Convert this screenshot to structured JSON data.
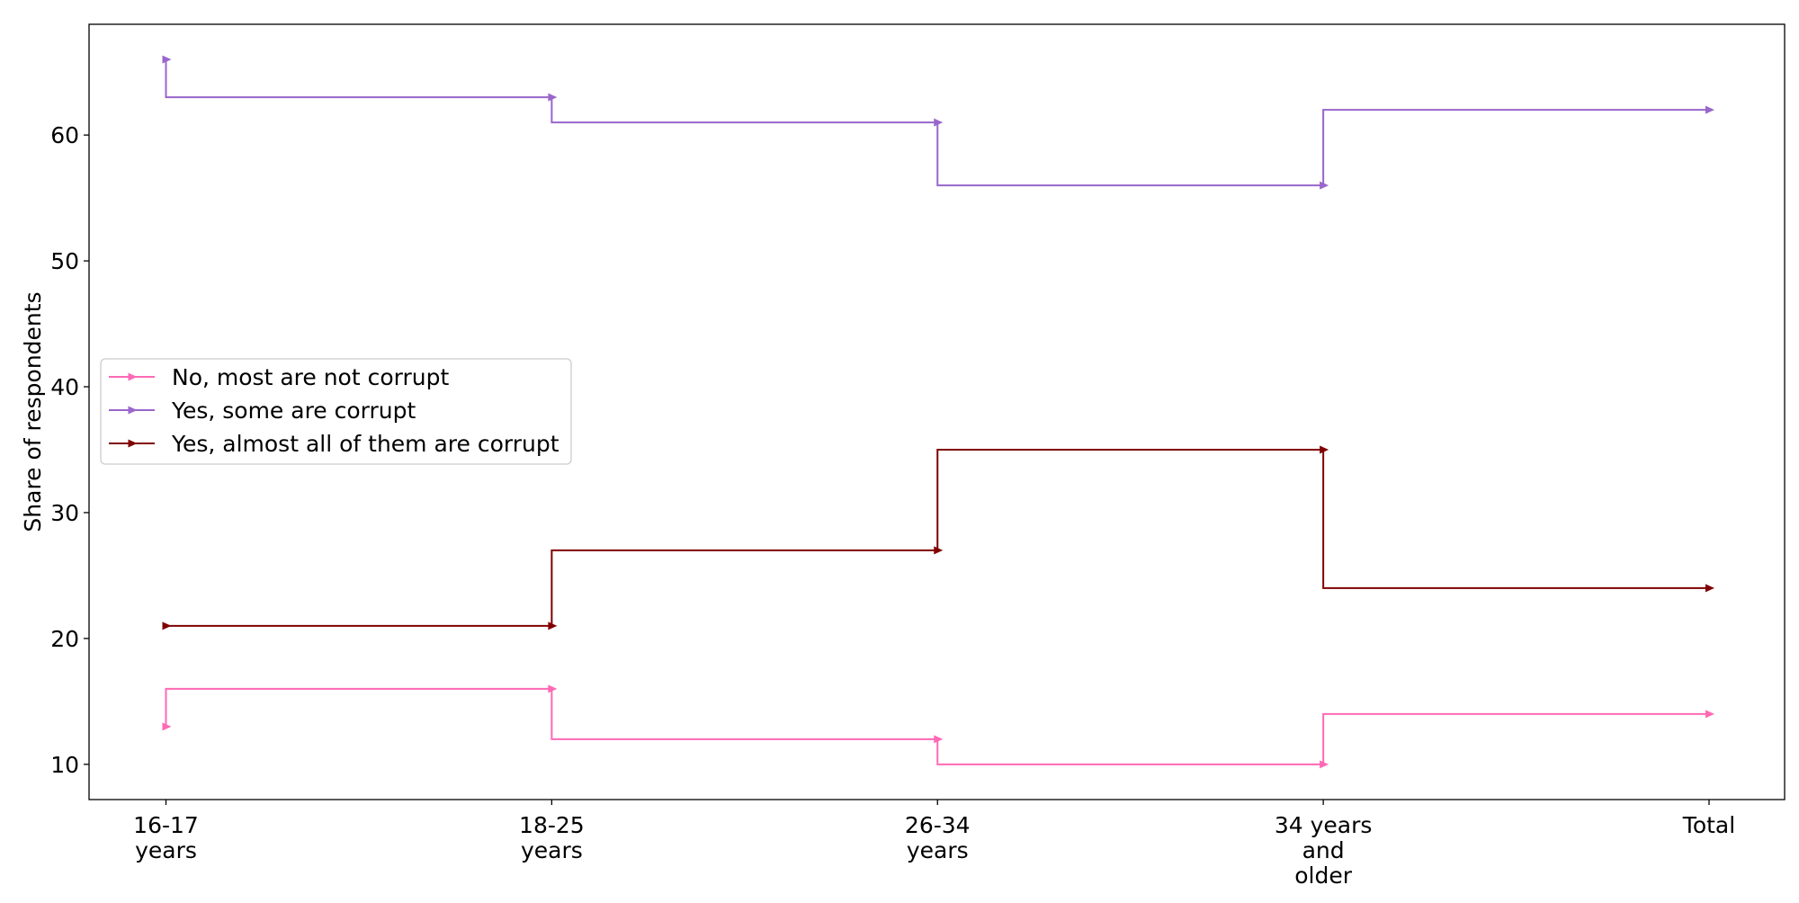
{
  "chart_data": {
    "type": "line",
    "step": "pre",
    "marker": "triangle-right",
    "ylabel": "Share of respondents",
    "xlabel": "",
    "categories": [
      [
        "16-17",
        "years"
      ],
      [
        "18-25",
        "years"
      ],
      [
        "26-34",
        "years"
      ],
      [
        "34 years",
        "and",
        "older"
      ],
      [
        "Total"
      ]
    ],
    "ylim": [
      7.2,
      68.8
    ],
    "yticks": [
      10,
      20,
      30,
      40,
      50,
      60
    ],
    "grid": false,
    "legend_position": "center-left",
    "series": [
      {
        "name": "No, most are not corrupt",
        "color": "#ff69b4",
        "values": [
          13,
          16,
          12,
          10,
          14
        ]
      },
      {
        "name": "Yes, some are corrupt",
        "color": "#9966cc",
        "values": [
          66,
          63,
          61,
          56,
          62
        ]
      },
      {
        "name": "Yes, almost all of them are corrupt",
        "color": "#800000",
        "values": [
          21,
          21,
          27,
          35,
          24
        ]
      }
    ]
  }
}
